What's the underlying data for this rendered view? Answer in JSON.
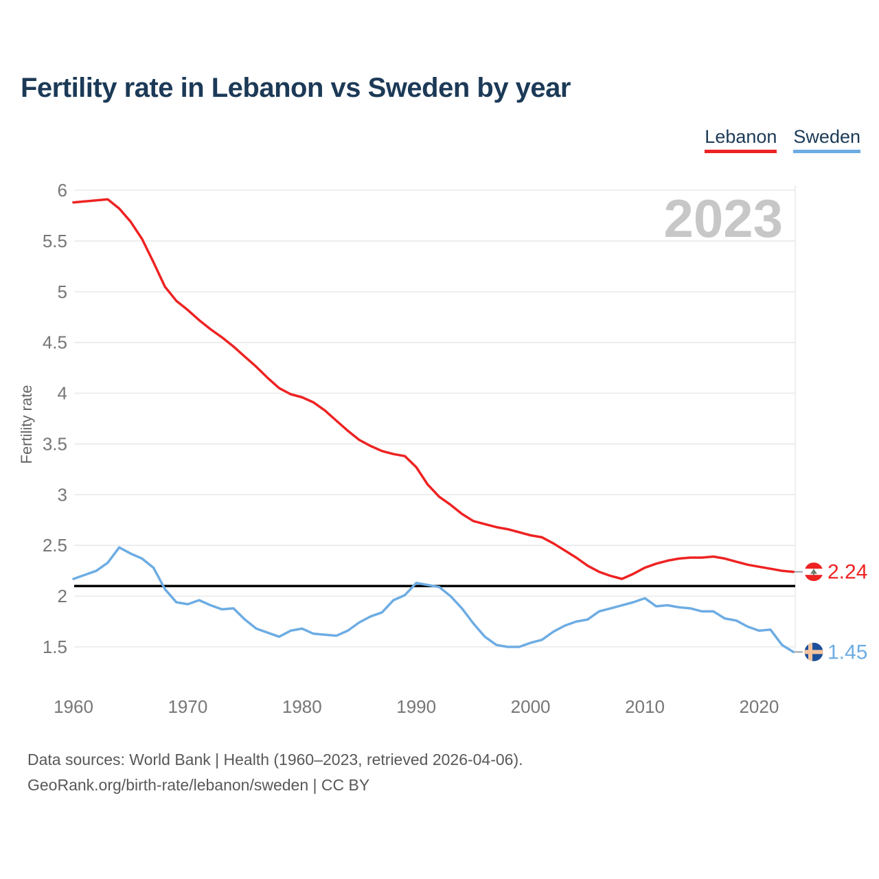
{
  "header": {
    "title": "Fertility rate in Lebanon vs Sweden by year"
  },
  "legend": {
    "items": [
      {
        "label": "Lebanon",
        "color": "#ee2222"
      },
      {
        "label": "Sweden",
        "color": "#6dace3"
      }
    ]
  },
  "watermark": "2023",
  "footer": {
    "line1": "Data sources: World Bank | Health (1960–2023, retrieved 2026-04-06).",
    "line2": "GeoRank.org/birth-rate/lebanon/sweden | CC BY"
  },
  "chart_data": {
    "type": "line",
    "title": "Fertility rate in Lebanon vs Sweden by year",
    "xlabel": "",
    "ylabel": "Fertility rate",
    "xlim": [
      1960,
      2023
    ],
    "ylim": [
      1.5,
      6
    ],
    "x_ticks": [
      1960,
      1970,
      1980,
      1990,
      2000,
      2010,
      2020
    ],
    "y_ticks": [
      6,
      5.5,
      5,
      4.5,
      4,
      3.5,
      3,
      2.5,
      2,
      1.5
    ],
    "grid": "horizontal",
    "legend_position": "top-right",
    "reference_line": {
      "value": 2.1,
      "color": "#000000",
      "label": ""
    },
    "watermark": "2023",
    "x_start": 1960,
    "x_end": 2023,
    "series": [
      {
        "name": "Lebanon",
        "color": "#ee2222",
        "end_label": "2.24",
        "end_value": 2.24,
        "flag": "lebanon",
        "values": [
          5.88,
          5.89,
          5.9,
          5.91,
          5.82,
          5.69,
          5.52,
          5.29,
          5.05,
          4.91,
          4.82,
          4.72,
          4.63,
          4.55,
          4.46,
          4.36,
          4.26,
          4.15,
          4.05,
          3.99,
          3.96,
          3.91,
          3.83,
          3.73,
          3.63,
          3.54,
          3.48,
          3.43,
          3.4,
          3.38,
          3.27,
          3.1,
          2.98,
          2.9,
          2.81,
          2.74,
          2.71,
          2.68,
          2.66,
          2.63,
          2.6,
          2.58,
          2.52,
          2.45,
          2.38,
          2.3,
          2.24,
          2.2,
          2.17,
          2.22,
          2.28,
          2.32,
          2.35,
          2.37,
          2.38,
          2.38,
          2.39,
          2.37,
          2.34,
          2.31,
          2.29,
          2.27,
          2.25,
          2.24
        ]
      },
      {
        "name": "Sweden",
        "color": "#6dace3",
        "end_label": "1.45",
        "end_value": 1.45,
        "flag": "sweden",
        "values": [
          2.17,
          2.21,
          2.25,
          2.33,
          2.48,
          2.42,
          2.37,
          2.28,
          2.07,
          1.94,
          1.92,
          1.96,
          1.91,
          1.87,
          1.88,
          1.77,
          1.68,
          1.64,
          1.6,
          1.66,
          1.68,
          1.63,
          1.62,
          1.61,
          1.66,
          1.74,
          1.8,
          1.84,
          1.96,
          2.01,
          2.13,
          2.11,
          2.09,
          2.0,
          1.88,
          1.73,
          1.6,
          1.52,
          1.5,
          1.5,
          1.54,
          1.57,
          1.65,
          1.71,
          1.75,
          1.77,
          1.85,
          1.88,
          1.91,
          1.94,
          1.98,
          1.9,
          1.91,
          1.89,
          1.88,
          1.85,
          1.85,
          1.78,
          1.76,
          1.7,
          1.66,
          1.67,
          1.52,
          1.45
        ]
      }
    ],
    "style": {
      "grid_color": "#e9e9e9",
      "tick_color": "#767676",
      "axis_title_color": "#666666",
      "watermark_color": "#c7c7c7",
      "line_width": 3.5,
      "flag_colors": {
        "lebanon_red": "#ee2222",
        "lebanon_white": "#ffffff",
        "lebanon_cedar": "#6f7b6f",
        "sweden_blue": "#1d4f9b",
        "sweden_cross": "#f5c49d"
      }
    }
  }
}
